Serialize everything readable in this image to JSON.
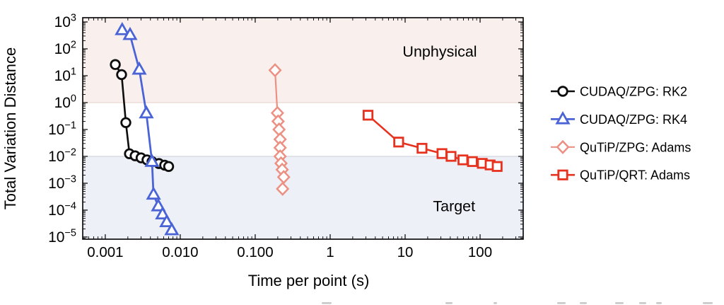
{
  "figure": {
    "background": "#ffffff",
    "text_color": "#000000"
  },
  "chart_data": {
    "type": "line",
    "title": "",
    "xlabel": "Time per point (s)",
    "ylabel": "Total Variation Distance",
    "x_scale": "log",
    "y_scale": "log",
    "x_range": [
      0.0005,
      376
    ],
    "y_range": [
      8.3e-06,
      1440
    ],
    "grid": false,
    "legend_position": "right-outside",
    "x_ticks": [
      {
        "v": 0.001,
        "label": "0.001"
      },
      {
        "v": 0.01,
        "label": "0.010"
      },
      {
        "v": 0.1,
        "label": "0.100"
      },
      {
        "v": 1,
        "label": "1"
      },
      {
        "v": 10,
        "label": "10"
      },
      {
        "v": 100,
        "label": "100"
      }
    ],
    "y_ticks": [
      {
        "v": 1000,
        "base": "10",
        "exp": "3"
      },
      {
        "v": 100,
        "base": "10",
        "exp": "2"
      },
      {
        "v": 10,
        "base": "10",
        "exp": "1"
      },
      {
        "v": 1,
        "base": "10",
        "exp": "0"
      },
      {
        "v": 0.1,
        "base": "10",
        "exp": "−1"
      },
      {
        "v": 0.01,
        "base": "10",
        "exp": "−2"
      },
      {
        "v": 0.001,
        "base": "10",
        "exp": "−3"
      },
      {
        "v": 0.0001,
        "base": "10",
        "exp": "−4"
      },
      {
        "v": 1e-05,
        "base": "10",
        "exp": "−5"
      }
    ],
    "regions": [
      {
        "name": "unphysical-region",
        "from": 1,
        "to": "top",
        "fill": "#f9f0ed",
        "edge_at": 1,
        "edge_color": "#e6d0ca"
      },
      {
        "name": "target-region",
        "from": "bottom",
        "to": 0.01,
        "fill": "#edf0f7",
        "edge_at": 0.01,
        "edge_color": "#c9cbd5"
      }
    ],
    "annotations": [
      {
        "name": "unphysical-label",
        "text": "Unphysical",
        "x": 29,
        "y": 78
      },
      {
        "name": "target-label",
        "text": "Target",
        "x": 45,
        "y": 0.00014
      }
    ],
    "series": [
      {
        "name": "CUDAQ/ZPG: RK2",
        "marker": "circle",
        "color": "#0d0d0d",
        "line_width": 2.6,
        "points": [
          [
            0.00136,
            26
          ],
          [
            0.00165,
            11
          ],
          [
            0.00188,
            0.18
          ],
          [
            0.0021,
            0.0125
          ],
          [
            0.0025,
            0.0105
          ],
          [
            0.003,
            0.0088
          ],
          [
            0.0036,
            0.0074
          ],
          [
            0.0042,
            0.0064
          ],
          [
            0.0052,
            0.0054
          ],
          [
            0.0062,
            0.0047
          ],
          [
            0.007,
            0.0042
          ]
        ]
      },
      {
        "name": "CUDAQ/ZPG: RK4",
        "marker": "triangle",
        "color": "#4a63d5",
        "line_width": 2.8,
        "points": [
          [
            0.00168,
            500
          ],
          [
            0.00214,
            330
          ],
          [
            0.00284,
            17
          ],
          [
            0.00353,
            0.4
          ],
          [
            0.0042,
            0.0063
          ],
          [
            0.0044,
            0.00038
          ],
          [
            0.0051,
            0.00014
          ],
          [
            0.0058,
            7e-05
          ],
          [
            0.0066,
            3.6e-05
          ],
          [
            0.0077,
            1.8e-05
          ]
        ]
      },
      {
        "name": "QuTiP/ZPG: Adams",
        "marker": "diamond",
        "color": "#ec9083",
        "line_width": 2.2,
        "points": [
          [
            0.184,
            16
          ],
          [
            0.198,
            0.41
          ],
          [
            0.202,
            0.2
          ],
          [
            0.208,
            0.1
          ],
          [
            0.215,
            0.043
          ],
          [
            0.215,
            0.021
          ],
          [
            0.215,
            0.01
          ],
          [
            0.221,
            0.0055
          ],
          [
            0.229,
            0.0032
          ],
          [
            0.24,
            0.0017
          ],
          [
            0.232,
            0.00062
          ]
        ]
      },
      {
        "name": "QuTiP/QRT: Adams",
        "marker": "square",
        "color": "#e6321f",
        "line_width": 2.6,
        "points": [
          [
            3.2,
            0.34
          ],
          [
            8.2,
            0.034
          ],
          [
            16.8,
            0.02
          ],
          [
            31,
            0.0127
          ],
          [
            41,
            0.01
          ],
          [
            59,
            0.0074
          ],
          [
            79,
            0.0064
          ],
          [
            107,
            0.0055
          ],
          [
            136,
            0.0048
          ],
          [
            169,
            0.0042
          ]
        ]
      }
    ]
  }
}
